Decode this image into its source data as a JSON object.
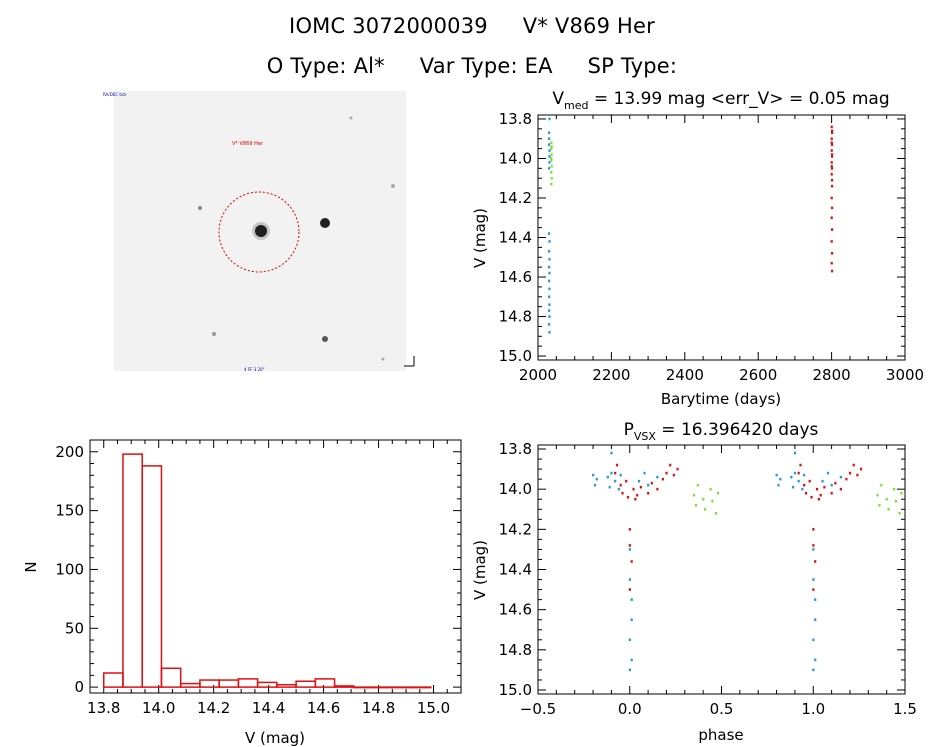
{
  "header": {
    "object_id": "IOMC 3072000039",
    "star_name": "V* V869 Her",
    "otype": "O Type: Al*",
    "vartype": "Var Type: EA",
    "sptype": "SP Type:"
  },
  "image_panel": {
    "top_left_label": "RA/DEC tick",
    "marker_label": "V* V869 Her",
    "bottom_label": "4 FF 3 20\"",
    "colors": {
      "circle": "#dd0000",
      "background": "#f2f2f2"
    }
  },
  "colors": {
    "blue": "#1f9bd8",
    "green": "#7fe030",
    "red": "#e01010",
    "hist": "#e01010"
  },
  "chart_data": [
    {
      "id": "lightcurve",
      "type": "scatter",
      "title_main": "V",
      "title_sub": "med",
      "title_rest": " = 13.99 mag <err_V> = 0.05 mag",
      "xlabel": "Barytime (days)",
      "ylabel": "V (mag)",
      "xlim": [
        2000,
        3000
      ],
      "ylim": [
        15.02,
        13.78
      ],
      "xticks": [
        "2000",
        "2200",
        "2400",
        "2600",
        "2800",
        "3000"
      ],
      "yticks": [
        "13.8",
        "14.0",
        "14.2",
        "14.4",
        "14.6",
        "14.8",
        "15.0"
      ],
      "series": [
        {
          "color": "blue",
          "points": [
            [
              2030,
              13.87
            ],
            [
              2030,
              13.9
            ],
            [
              2030,
              13.93
            ],
            [
              2031,
              13.96
            ],
            [
              2031,
              13.99
            ],
            [
              2031,
              14.02
            ],
            [
              2030,
              14.05
            ],
            [
              2031,
              13.8
            ],
            [
              2030,
              14.38
            ],
            [
              2031,
              14.42
            ],
            [
              2030,
              14.47
            ],
            [
              2031,
              14.51
            ],
            [
              2030,
              14.55
            ],
            [
              2031,
              14.58
            ],
            [
              2030,
              14.62
            ],
            [
              2031,
              14.66
            ],
            [
              2030,
              14.7
            ],
            [
              2031,
              14.74
            ],
            [
              2030,
              14.77
            ],
            [
              2031,
              14.8
            ],
            [
              2030,
              14.84
            ],
            [
              2031,
              14.88
            ]
          ]
        },
        {
          "color": "green",
          "points": [
            [
              2036,
              13.92
            ],
            [
              2036,
              13.95
            ],
            [
              2037,
              13.98
            ],
            [
              2036,
              14.01
            ],
            [
              2037,
              14.04
            ],
            [
              2036,
              14.07
            ],
            [
              2037,
              14.1
            ],
            [
              2036,
              14.13
            ],
            [
              2037,
              13.94
            ],
            [
              2036,
              14.0
            ]
          ]
        },
        {
          "color": "red",
          "points": [
            [
              2800,
              13.84
            ],
            [
              2801,
              13.87
            ],
            [
              2800,
              13.9
            ],
            [
              2801,
              13.93
            ],
            [
              2800,
              13.96
            ],
            [
              2801,
              13.99
            ],
            [
              2800,
              14.02
            ],
            [
              2801,
              14.05
            ],
            [
              2800,
              14.08
            ],
            [
              2801,
              14.11
            ],
            [
              2801,
              13.86
            ],
            [
              2800,
              13.92
            ],
            [
              2801,
              13.98
            ],
            [
              2800,
              14.04
            ],
            [
              2801,
              14.14
            ],
            [
              2800,
              14.2
            ],
            [
              2801,
              14.25
            ],
            [
              2800,
              14.3
            ],
            [
              2801,
              14.36
            ],
            [
              2800,
              14.42
            ],
            [
              2801,
              14.48
            ],
            [
              2800,
              14.53
            ],
            [
              2801,
              14.57
            ]
          ]
        }
      ]
    },
    {
      "id": "histogram",
      "type": "bar",
      "title": "",
      "xlabel": "V (mag)",
      "ylabel": "N",
      "xlim": [
        13.75,
        15.1
      ],
      "ylim": [
        -5,
        210
      ],
      "xticks": [
        "13.8",
        "14.0",
        "14.2",
        "14.4",
        "14.6",
        "14.8",
        "15.0"
      ],
      "yticks": [
        "0",
        "50",
        "100",
        "150",
        "200"
      ],
      "bin_edges": [
        13.8,
        13.87,
        13.94,
        14.01,
        14.08,
        14.15,
        14.22,
        14.29,
        14.36,
        14.43,
        14.5,
        14.57,
        14.64,
        14.71,
        14.78,
        14.85,
        14.92,
        14.99
      ],
      "values": [
        12,
        198,
        188,
        16,
        3,
        6,
        6,
        7,
        4,
        2,
        5,
        7,
        1,
        0,
        0,
        0,
        0
      ]
    },
    {
      "id": "phased",
      "type": "scatter",
      "title_main": "P",
      "title_sub": "VSX",
      "title_rest": " = 16.396420 days",
      "xlabel": "phase",
      "ylabel": "V (mag)",
      "xlim": [
        -0.5,
        1.5
      ],
      "ylim": [
        15.02,
        13.78
      ],
      "xticks": [
        "−0.5",
        "0.0",
        "0.5",
        "1.0",
        "1.5"
      ],
      "yticks": [
        "13.8",
        "14.0",
        "14.2",
        "14.4",
        "14.6",
        "14.8",
        "15.0"
      ],
      "series": [
        {
          "color": "blue",
          "points": [
            [
              -0.2,
              13.93
            ],
            [
              -0.19,
              13.98
            ],
            [
              -0.18,
              13.95
            ],
            [
              -0.12,
              13.94
            ],
            [
              -0.11,
              13.99
            ],
            [
              -0.1,
              13.92
            ],
            [
              -0.08,
              13.96
            ],
            [
              -0.06,
              14.0
            ],
            [
              -0.05,
              13.93
            ],
            [
              0.0,
              14.3
            ],
            [
              0.0,
              14.45
            ],
            [
              0.01,
              14.55
            ],
            [
              0.01,
              14.65
            ],
            [
              0.0,
              14.75
            ],
            [
              0.01,
              14.85
            ],
            [
              0.0,
              14.9
            ],
            [
              0.05,
              13.96
            ],
            [
              0.08,
              13.92
            ],
            [
              0.1,
              13.98
            ],
            [
              0.15,
              13.94
            ],
            [
              -0.1,
              13.82
            ]
          ]
        },
        {
          "color": "green",
          "points": [
            [
              0.35,
              14.03
            ],
            [
              0.36,
              14.08
            ],
            [
              0.37,
              13.98
            ],
            [
              0.4,
              14.05
            ],
            [
              0.41,
              14.1
            ],
            [
              0.44,
              14.0
            ],
            [
              0.45,
              14.06
            ],
            [
              0.47,
              14.12
            ],
            [
              0.48,
              14.02
            ]
          ]
        },
        {
          "color": "red",
          "points": [
            [
              -0.05,
              13.98
            ],
            [
              -0.04,
              14.02
            ],
            [
              -0.02,
              13.96
            ],
            [
              -0.01,
              14.04
            ],
            [
              0.0,
              14.2
            ],
            [
              0.0,
              14.28
            ],
            [
              0.01,
              14.36
            ],
            [
              0.0,
              14.5
            ],
            [
              0.02,
              14.0
            ],
            [
              0.04,
              14.03
            ],
            [
              0.06,
              13.99
            ],
            [
              0.1,
              14.02
            ],
            [
              0.12,
              13.97
            ],
            [
              0.15,
              14.0
            ],
            [
              0.18,
              13.95
            ],
            [
              0.2,
              13.92
            ],
            [
              0.22,
              13.88
            ],
            [
              0.24,
              13.93
            ],
            [
              0.26,
              13.9
            ],
            [
              -0.07,
              13.88
            ],
            [
              -0.08,
              13.92
            ],
            [
              0.03,
              14.05
            ]
          ]
        }
      ]
    }
  ]
}
